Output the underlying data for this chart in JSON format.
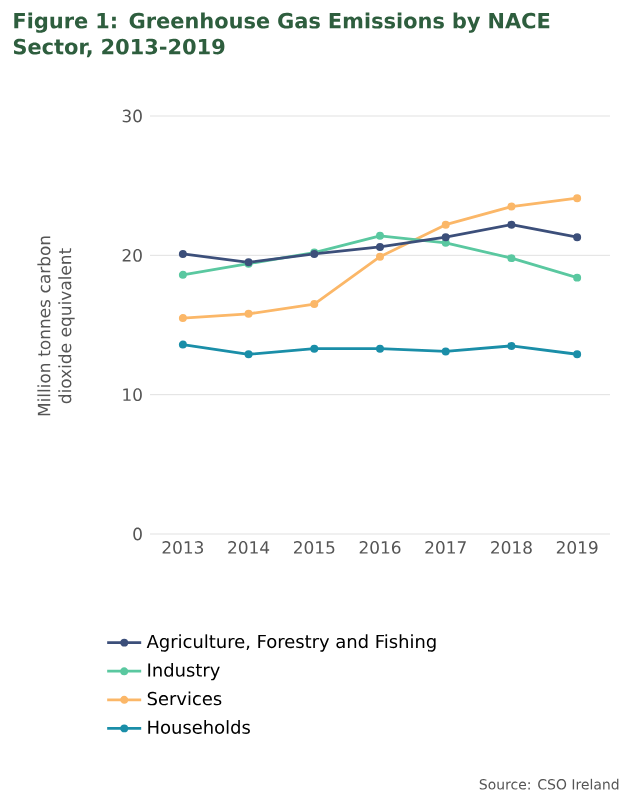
{
  "chart_data": {
    "type": "line",
    "title": "Figure 1: Greenhouse Gas Emissions by NACE Sector, 2013-2019",
    "ylabel": "Million tonnes carbon dioxide equivalent",
    "categories": [
      "2013",
      "2014",
      "2015",
      "2016",
      "2017",
      "2018",
      "2019"
    ],
    "series": [
      {
        "name": "Agriculture, Forestry and Fishing",
        "color": "#3c4f7a",
        "values": [
          20.1,
          19.5,
          20.1,
          20.6,
          21.3,
          22.2,
          21.3
        ]
      },
      {
        "name": "Industry",
        "color": "#5ac8a0",
        "values": [
          18.6,
          19.4,
          20.2,
          21.4,
          20.9,
          19.8,
          18.4
        ]
      },
      {
        "name": "Services",
        "color": "#fbb768",
        "values": [
          15.5,
          15.8,
          16.5,
          19.9,
          22.2,
          23.5,
          24.1
        ]
      },
      {
        "name": "Households",
        "color": "#1a8ea8",
        "values": [
          13.6,
          12.9,
          13.3,
          13.3,
          13.1,
          13.5,
          12.9
        ]
      }
    ],
    "ylim": [
      0,
      30
    ],
    "yticks": [
      0,
      10,
      20,
      30
    ],
    "grid": "y",
    "legend": "bottom",
    "marker": "circle",
    "line_style": "solid",
    "annotations": [
      "Source: CSO Ireland"
    ]
  }
}
